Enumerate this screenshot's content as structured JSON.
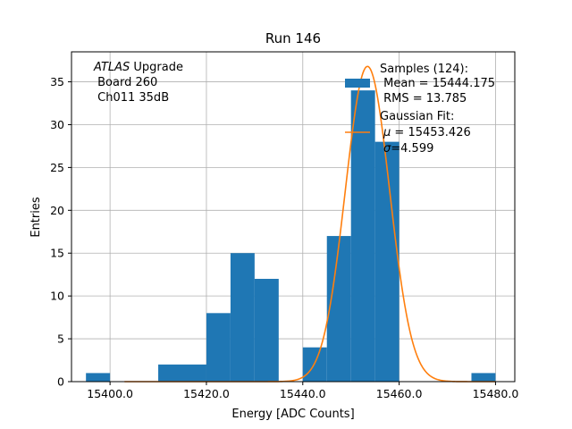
{
  "chart_data": {
    "type": "histogram",
    "title": "Run 146",
    "xlabel": "Energy [ADC Counts]",
    "ylabel": "Entries",
    "xlim": [
      15392,
      15484
    ],
    "ylim": [
      0,
      38.5
    ],
    "grid": true,
    "bin_width": 5,
    "bins": [
      {
        "x0": 15395,
        "count": 1
      },
      {
        "x0": 15400,
        "count": 0
      },
      {
        "x0": 15405,
        "count": 0
      },
      {
        "x0": 15410,
        "count": 2
      },
      {
        "x0": 15415,
        "count": 2
      },
      {
        "x0": 15420,
        "count": 8
      },
      {
        "x0": 15425,
        "count": 15
      },
      {
        "x0": 15430,
        "count": 12
      },
      {
        "x0": 15435,
        "count": 0
      },
      {
        "x0": 15440,
        "count": 4
      },
      {
        "x0": 15445,
        "count": 17
      },
      {
        "x0": 15450,
        "count": 34
      },
      {
        "x0": 15455,
        "count": 28
      },
      {
        "x0": 15460,
        "count": 0
      },
      {
        "x0": 15465,
        "count": 0
      },
      {
        "x0": 15470,
        "count": 0
      },
      {
        "x0": 15475,
        "count": 1
      }
    ],
    "x_ticks": [
      15400,
      15420,
      15440,
      15460,
      15480
    ],
    "x_tick_labels": [
      "15400.0",
      "15420.0",
      "15440.0",
      "15460.0",
      "15480.0"
    ],
    "y_ticks": [
      0,
      5,
      10,
      15,
      20,
      25,
      30,
      35
    ],
    "y_tick_labels": [
      "0",
      "5",
      "10",
      "15",
      "20",
      "25",
      "30",
      "35"
    ],
    "gaussian_fit": {
      "mu": 15453.426,
      "sigma": 4.599,
      "amplitude": 36.8,
      "color": "#ff7f0e"
    },
    "histogram_color": "#1f77b4",
    "annotation": {
      "line1_italic": "ATLAS",
      "line1_rest": " Upgrade",
      "line2": " Board 260",
      "line3": " Ch011 35dB"
    },
    "legend": {
      "position": "top-right",
      "samples_title": "Samples (124):",
      "samples_mean": " Mean = 15444.175",
      "samples_rms": " RMS = 13.785",
      "fit_title": "Gaussian Fit:",
      "fit_mu_symbol": "μ",
      "fit_mu_rest": " = 15453.426",
      "fit_sigma_symbol": "σ",
      "fit_sigma_rest": "=4.599"
    }
  }
}
